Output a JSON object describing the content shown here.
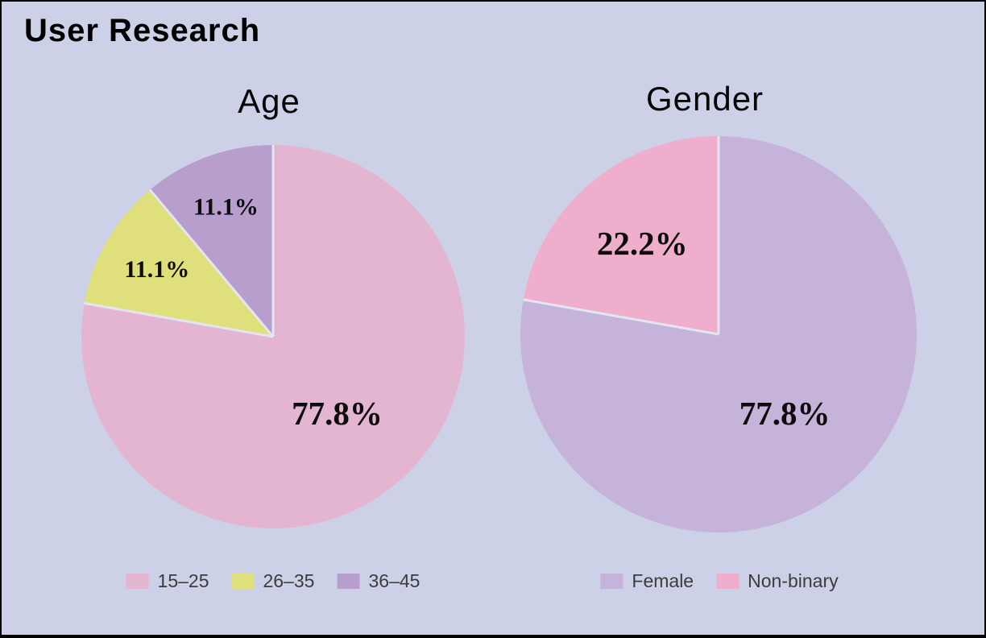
{
  "header": {
    "title": "User Research"
  },
  "colors": {
    "background": "#cdd1e7",
    "window_border": "#000000",
    "slice_gap": "#e3e6f2",
    "pie_label_text": "#0c0c0c",
    "legend_text": "#3c3c3c",
    "title_text": "#000000"
  },
  "chart_data": [
    {
      "type": "pie",
      "title": "Age",
      "unit": "%",
      "start_angle": "top",
      "direction": "clockwise",
      "legend_position": "bottom",
      "categories": [
        "15–25",
        "26–35",
        "36–45"
      ],
      "values": [
        77.8,
        11.1,
        11.1
      ],
      "slices": [
        {
          "category": "15–25",
          "value": 77.8,
          "pct_label": "77.8%",
          "color": "#e4b5d1",
          "label_r": 0.52,
          "label_size": "lg"
        },
        {
          "category": "26–35",
          "value": 11.1,
          "pct_label": "11.1%",
          "color": "#dfe07b",
          "label_r": 0.7,
          "label_size": "sm"
        },
        {
          "category": "36–45",
          "value": 11.1,
          "pct_label": "11.1%",
          "color": "#b89ecd",
          "label_r": 0.72,
          "label_size": "sm"
        }
      ]
    },
    {
      "type": "pie",
      "title": "Gender",
      "unit": "%",
      "start_angle": "top",
      "direction": "clockwise",
      "legend_position": "bottom",
      "categories": [
        "Female",
        "Non-binary"
      ],
      "values": [
        77.8,
        22.2
      ],
      "slices": [
        {
          "category": "Female",
          "value": 77.8,
          "pct_label": "77.8%",
          "color": "#c6b3da",
          "label_r": 0.52,
          "label_size": "lg"
        },
        {
          "category": "Non-binary",
          "value": 22.2,
          "pct_label": "22.2%",
          "color": "#efaecb",
          "label_r": 0.6,
          "label_size": "lg"
        }
      ]
    }
  ]
}
